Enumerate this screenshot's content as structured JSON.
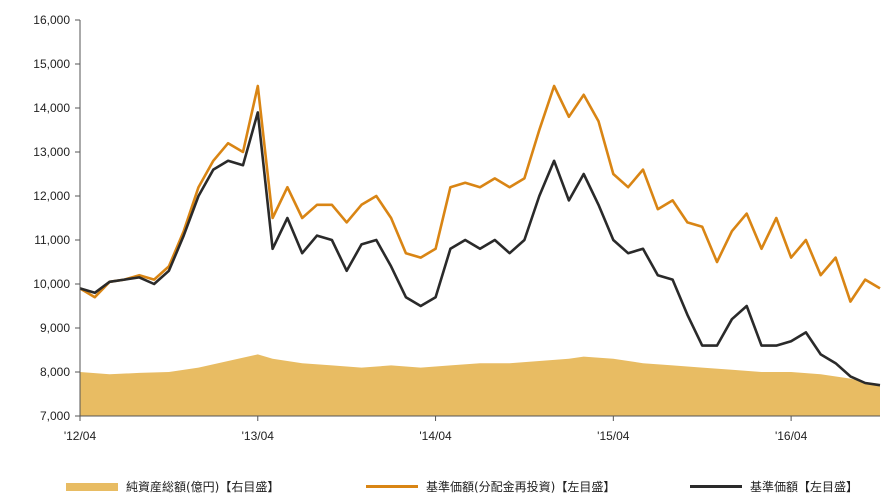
{
  "chart_data": {
    "type": "line",
    "x_tick_labels": [
      "'12/04",
      "'13/04",
      "'14/04",
      "'15/04",
      "'16/04"
    ],
    "y_tick_labels": [
      "7,000",
      "8,000",
      "9,000",
      "10,000",
      "11,000",
      "12,000",
      "13,000",
      "14,000",
      "15,000",
      "16,000"
    ],
    "ylim": [
      7000,
      16000
    ],
    "xlim": [
      "2012-04",
      "2016-10"
    ],
    "grid": false,
    "legend_position": "bottom",
    "series": [
      {
        "name": "純資産総額(億円)【右目盛】",
        "kind": "area",
        "color": "#E8BC63",
        "x": [
          "2012-04",
          "2012-06",
          "2012-08",
          "2012-10",
          "2012-12",
          "2013-02",
          "2013-04",
          "2013-05",
          "2013-07",
          "2013-09",
          "2013-11",
          "2014-01",
          "2014-03",
          "2014-05",
          "2014-07",
          "2014-09",
          "2014-11",
          "2015-01",
          "2015-02",
          "2015-04",
          "2015-06",
          "2015-08",
          "2015-10",
          "2015-12",
          "2016-02",
          "2016-04",
          "2016-06",
          "2016-08",
          "2016-10"
        ],
        "y": [
          8000,
          7950,
          7980,
          8000,
          8100,
          8250,
          8400,
          8300,
          8200,
          8150,
          8100,
          8150,
          8100,
          8150,
          8200,
          8200,
          8250,
          8300,
          8350,
          8300,
          8200,
          8150,
          8100,
          8050,
          8000,
          8000,
          7950,
          7850,
          7700
        ]
      },
      {
        "name": "基準価額(分配金再投資)【左目盛】",
        "kind": "line",
        "color": "#D98514",
        "x": [
          "2012-04",
          "2012-05",
          "2012-06",
          "2012-07",
          "2012-08",
          "2012-09",
          "2012-10",
          "2012-11",
          "2012-12",
          "2013-01",
          "2013-02",
          "2013-03",
          "2013-04",
          "2013-05",
          "2013-06",
          "2013-07",
          "2013-08",
          "2013-09",
          "2013-10",
          "2013-11",
          "2013-12",
          "2014-01",
          "2014-02",
          "2014-03",
          "2014-04",
          "2014-05",
          "2014-06",
          "2014-07",
          "2014-08",
          "2014-09",
          "2014-10",
          "2014-11",
          "2014-12",
          "2015-01",
          "2015-02",
          "2015-03",
          "2015-04",
          "2015-05",
          "2015-06",
          "2015-07",
          "2015-08",
          "2015-09",
          "2015-10",
          "2015-11",
          "2015-12",
          "2016-01",
          "2016-02",
          "2016-03",
          "2016-04",
          "2016-05",
          "2016-06",
          "2016-07",
          "2016-08",
          "2016-09",
          "2016-10"
        ],
        "y": [
          9900,
          9700,
          10050,
          10100,
          10200,
          10100,
          10400,
          11200,
          12200,
          12800,
          13200,
          13000,
          14500,
          11500,
          12200,
          11500,
          11800,
          11800,
          11400,
          11800,
          12000,
          11500,
          10700,
          10600,
          10800,
          12200,
          12300,
          12200,
          12400,
          12200,
          12400,
          13500,
          14500,
          13800,
          14300,
          13700,
          12500,
          12200,
          12600,
          11700,
          11900,
          11400,
          11300,
          10500,
          11200,
          11600,
          10800,
          11500,
          10600,
          11000,
          10200,
          10600,
          9600,
          10100,
          9900
        ]
      },
      {
        "name": "基準価額【左目盛】",
        "kind": "line",
        "color": "#2A2A2A",
        "x": [
          "2012-04",
          "2012-05",
          "2012-06",
          "2012-07",
          "2012-08",
          "2012-09",
          "2012-10",
          "2012-11",
          "2012-12",
          "2013-01",
          "2013-02",
          "2013-03",
          "2013-04",
          "2013-05",
          "2013-06",
          "2013-07",
          "2013-08",
          "2013-09",
          "2013-10",
          "2013-11",
          "2013-12",
          "2014-01",
          "2014-02",
          "2014-03",
          "2014-04",
          "2014-05",
          "2014-06",
          "2014-07",
          "2014-08",
          "2014-09",
          "2014-10",
          "2014-11",
          "2014-12",
          "2015-01",
          "2015-02",
          "2015-03",
          "2015-04",
          "2015-05",
          "2015-06",
          "2015-07",
          "2015-08",
          "2015-09",
          "2015-10",
          "2015-11",
          "2015-12",
          "2016-01",
          "2016-02",
          "2016-03",
          "2016-04",
          "2016-05",
          "2016-06",
          "2016-07",
          "2016-08",
          "2016-09",
          "2016-10"
        ],
        "y": [
          9900,
          9800,
          10050,
          10100,
          10150,
          10000,
          10300,
          11100,
          12000,
          12600,
          12800,
          12700,
          13900,
          10800,
          11500,
          10700,
          11100,
          11000,
          10300,
          10900,
          11000,
          10400,
          9700,
          9500,
          9700,
          10800,
          11000,
          10800,
          11000,
          10700,
          11000,
          12000,
          12800,
          11900,
          12500,
          11800,
          11000,
          10700,
          10800,
          10200,
          10100,
          9300,
          8600,
          8600,
          9200,
          9500,
          8600,
          8600,
          8700,
          8900,
          8400,
          8200,
          7900,
          7750,
          7700
        ]
      }
    ]
  }
}
